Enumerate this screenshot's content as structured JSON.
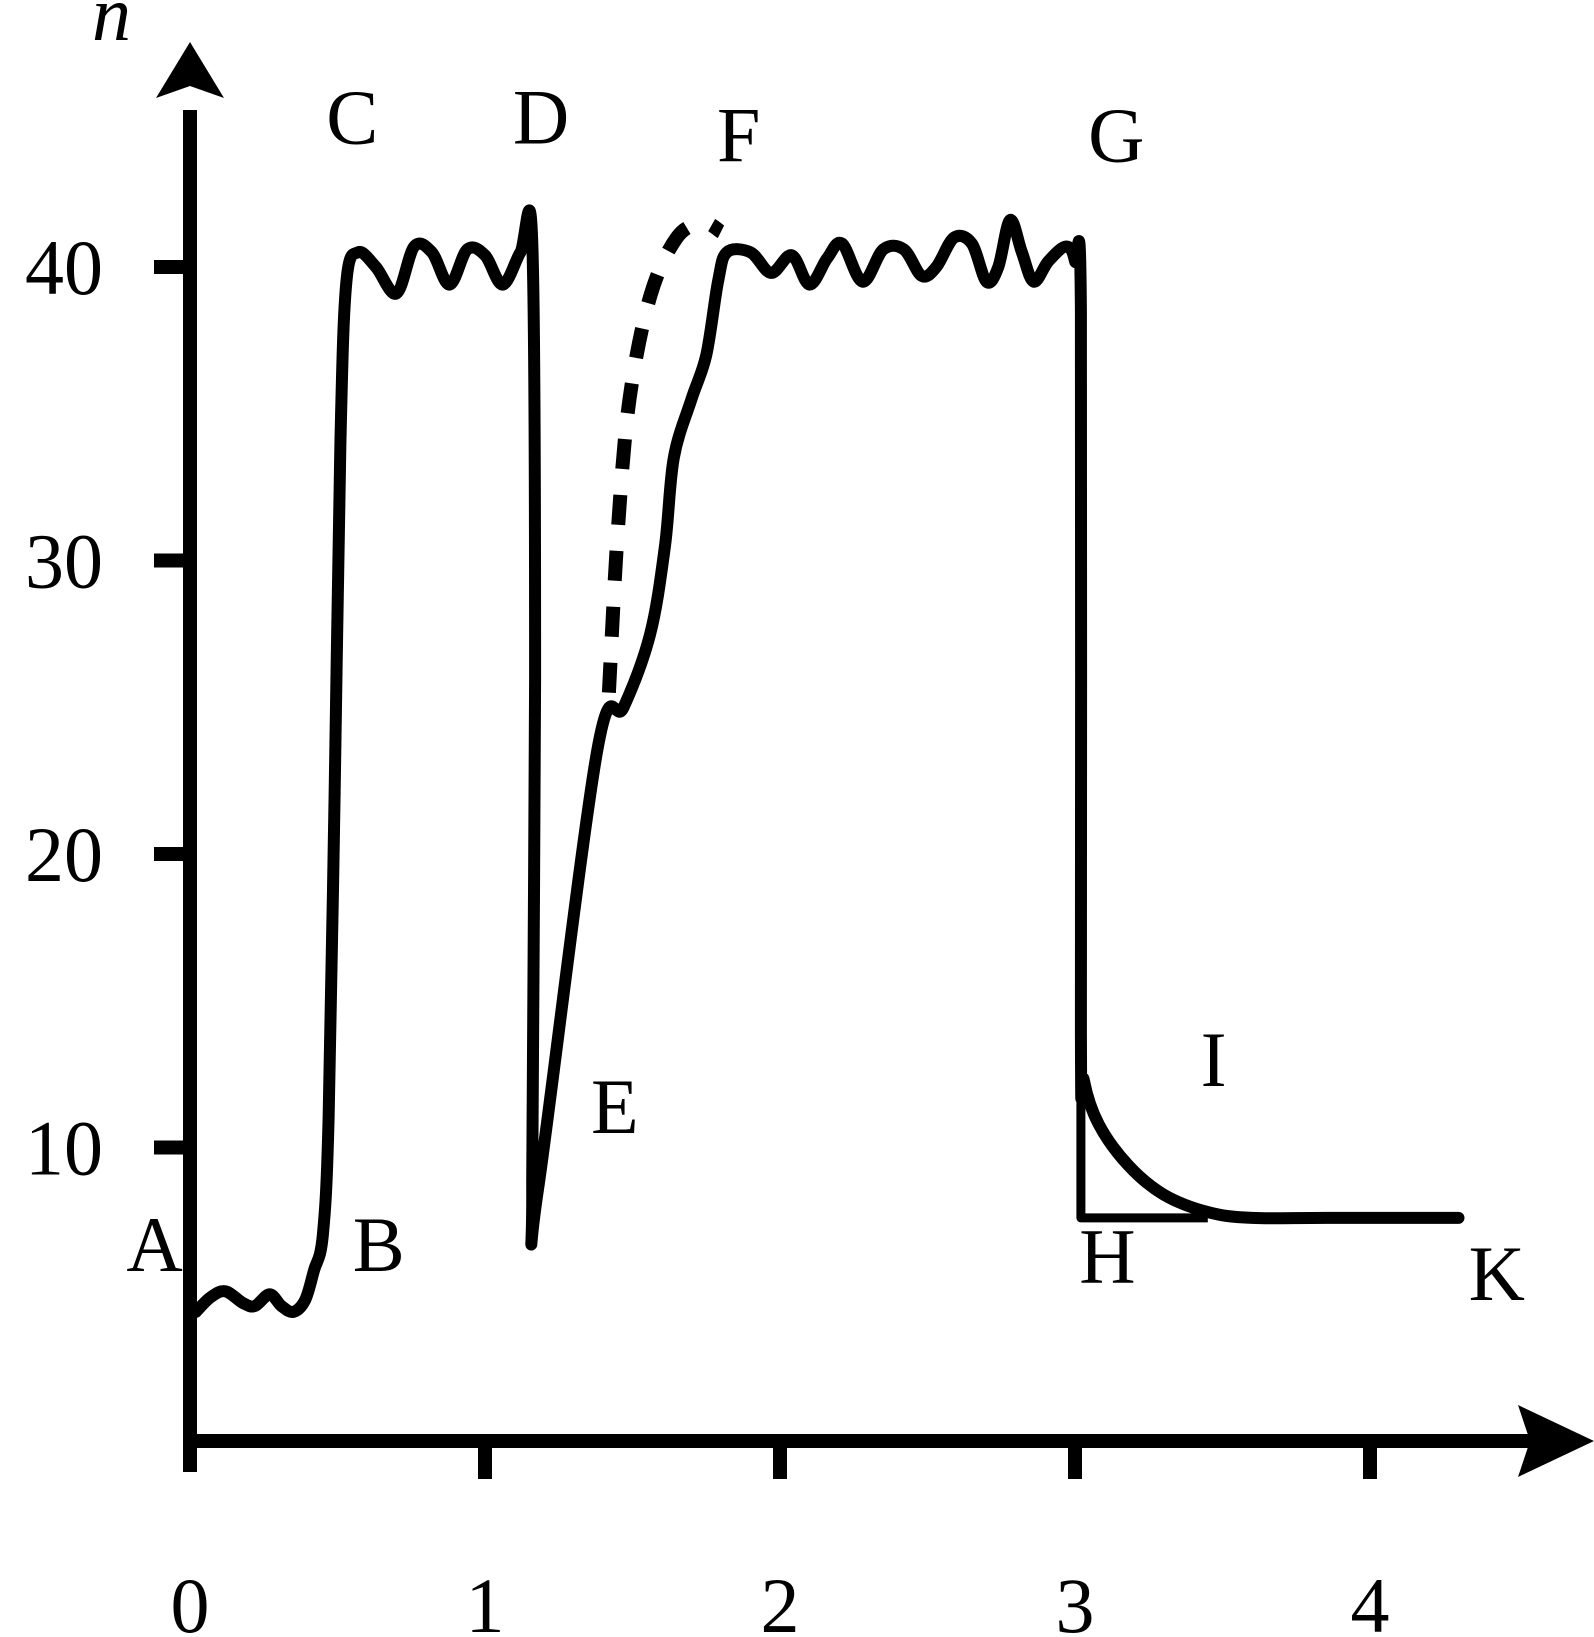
{
  "chart_data": {
    "type": "line",
    "title": "",
    "xlabel": "",
    "ylabel": "n",
    "xlim": [
      0,
      4.6
    ],
    "ylim": [
      0,
      48
    ],
    "x_ticks": [
      0,
      1,
      2,
      3,
      4
    ],
    "x_tick_labels": [
      "0",
      "1",
      "2",
      "3",
      "4"
    ],
    "y_ticks": [
      10,
      20,
      30,
      40
    ],
    "y_tick_labels": [
      "10",
      "20",
      "30",
      "40"
    ],
    "grid": false,
    "legend": "none",
    "series": [
      {
        "style": "solid",
        "points": [
          [
            0.02,
            4.4
          ],
          [
            0.07,
            4.9
          ],
          [
            0.12,
            5.1
          ],
          [
            0.18,
            4.7
          ],
          [
            0.22,
            4.6
          ],
          [
            0.27,
            5.0
          ],
          [
            0.31,
            4.6
          ],
          [
            0.35,
            4.4
          ],
          [
            0.39,
            4.8
          ],
          [
            0.42,
            5.8
          ],
          [
            0.45,
            7.0
          ],
          [
            0.47,
            11.0
          ],
          [
            0.49,
            22.0
          ],
          [
            0.51,
            34.0
          ],
          [
            0.53,
            39.5
          ],
          [
            0.57,
            40.5
          ],
          [
            0.63,
            40.0
          ],
          [
            0.7,
            39.1
          ],
          [
            0.76,
            40.7
          ],
          [
            0.82,
            40.5
          ],
          [
            0.88,
            39.4
          ],
          [
            0.94,
            40.6
          ],
          [
            1.0,
            40.4
          ],
          [
            1.06,
            39.4
          ],
          [
            1.12,
            40.5
          ],
          [
            1.16,
            40.9
          ],
          [
            1.17,
            26.0
          ],
          [
            1.16,
            8.8
          ],
          [
            1.18,
            8.6
          ],
          [
            1.38,
            23.5
          ],
          [
            1.47,
            25.0
          ],
          [
            1.56,
            27.5
          ],
          [
            1.61,
            30.5
          ],
          [
            1.64,
            33.5
          ],
          [
            1.7,
            35.5
          ],
          [
            1.75,
            37.0
          ],
          [
            1.79,
            39.5
          ],
          [
            1.82,
            40.5
          ],
          [
            1.9,
            40.5
          ],
          [
            1.97,
            39.8
          ],
          [
            2.04,
            40.4
          ],
          [
            2.1,
            39.4
          ],
          [
            2.16,
            40.3
          ],
          [
            2.21,
            40.8
          ],
          [
            2.28,
            39.5
          ],
          [
            2.35,
            40.6
          ],
          [
            2.42,
            40.6
          ],
          [
            2.48,
            39.7
          ],
          [
            2.53,
            40.0
          ],
          [
            2.59,
            41.0
          ],
          [
            2.65,
            40.8
          ],
          [
            2.7,
            39.5
          ],
          [
            2.74,
            40.0
          ],
          [
            2.78,
            41.6
          ],
          [
            2.82,
            40.5
          ],
          [
            2.86,
            39.5
          ],
          [
            2.91,
            40.2
          ],
          [
            2.97,
            40.7
          ],
          [
            3.0,
            40.2
          ],
          [
            3.02,
            38.5
          ],
          [
            3.02,
            14.0
          ],
          [
            3.03,
            12.3
          ],
          [
            3.08,
            10.8
          ],
          [
            3.18,
            9.4
          ],
          [
            3.3,
            8.4
          ],
          [
            3.45,
            7.8
          ],
          [
            3.6,
            7.6
          ],
          [
            3.85,
            7.6
          ],
          [
            4.3,
            7.6
          ]
        ]
      },
      {
        "style": "dashed",
        "points": [
          [
            1.42,
            25.5
          ],
          [
            1.45,
            31.0
          ],
          [
            1.49,
            35.5
          ],
          [
            1.56,
            39.0
          ],
          [
            1.65,
            41.0
          ],
          [
            1.74,
            41.5
          ],
          [
            1.8,
            41.2
          ]
        ]
      },
      {
        "style": "solid",
        "points": [
          [
            3.02,
            12.3
          ],
          [
            3.02,
            7.6
          ],
          [
            3.45,
            7.6
          ]
        ]
      }
    ],
    "annotations": [
      {
        "text": "A",
        "x": -0.12,
        "y": 5.8
      },
      {
        "text": "B",
        "x": 0.64,
        "y": 5.8
      },
      {
        "text": "C",
        "x": 0.55,
        "y": 44.2
      },
      {
        "text": "D",
        "x": 1.19,
        "y": 44.2
      },
      {
        "text": "E",
        "x": 1.44,
        "y": 10.5
      },
      {
        "text": "F",
        "x": 1.86,
        "y": 43.6
      },
      {
        "text": "G",
        "x": 3.14,
        "y": 43.6
      },
      {
        "text": "H",
        "x": 3.11,
        "y": 5.4
      },
      {
        "text": "I",
        "x": 3.47,
        "y": 12.1
      },
      {
        "text": "K",
        "x": 4.43,
        "y": 4.8
      }
    ]
  }
}
